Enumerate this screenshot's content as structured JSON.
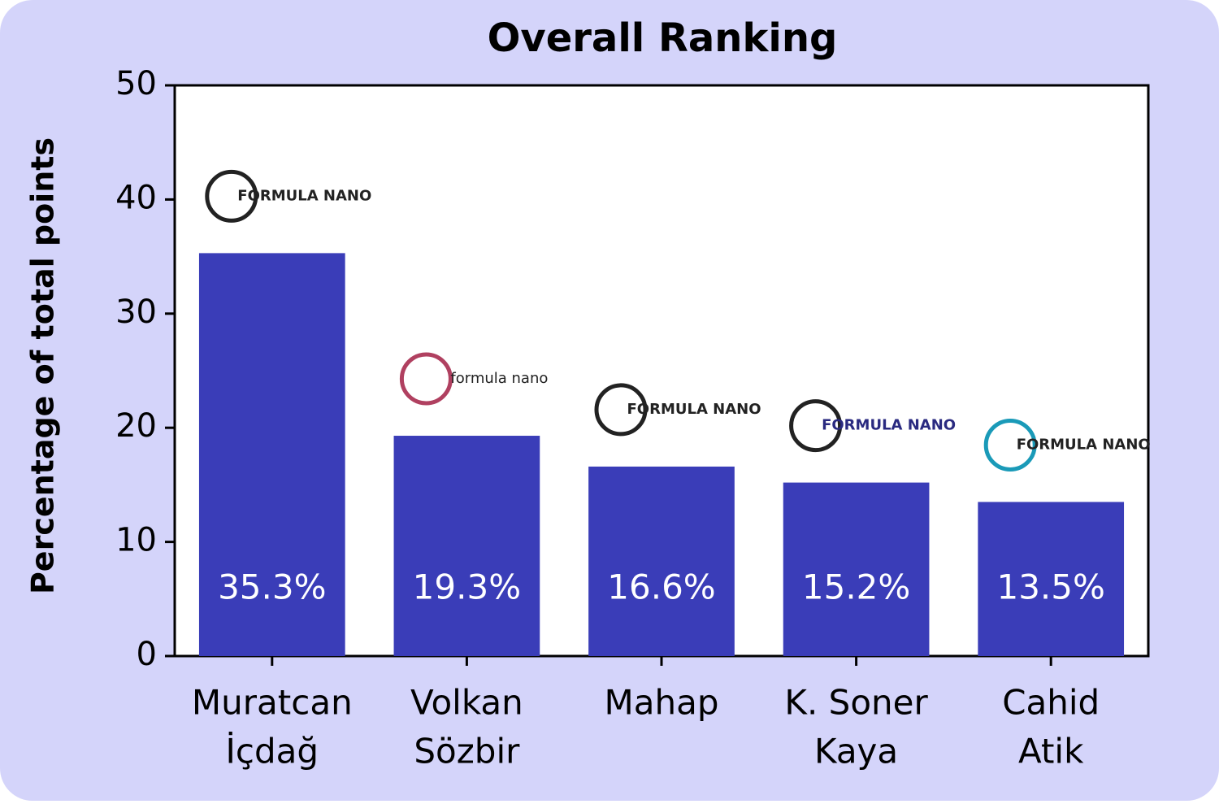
{
  "chart_data": {
    "type": "bar",
    "title": "Overall Ranking",
    "y_label": "Percentage of total points",
    "categories": [
      [
        "Muratcan",
        "İçdağ"
      ],
      [
        "Volkan",
        "Sözbir"
      ],
      [
        "Mahap"
      ],
      [
        "K. Soner",
        "Kaya"
      ],
      [
        "Cahid",
        "Atik"
      ]
    ],
    "values": [
      35.3,
      19.3,
      16.6,
      15.2,
      13.5
    ],
    "value_labels": [
      "35.3%",
      "19.3%",
      "16.6%",
      "15.2%",
      "13.5%"
    ],
    "logos": [
      "FORMULA NANO",
      "formula nano",
      "FORMULA NANO",
      "FORMULA NANO",
      "FORMULA NANO"
    ],
    "color": "#3a3db8",
    "ylim": [
      0,
      50
    ],
    "yticks": [
      0,
      10,
      20,
      30,
      40,
      50
    ],
    "grid": false
  }
}
